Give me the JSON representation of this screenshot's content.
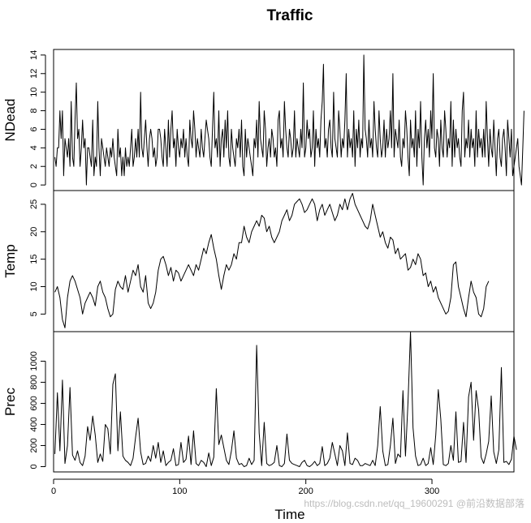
{
  "chart_data": {
    "type": "line",
    "title": "Traffic",
    "xlabel": "Time",
    "xlim": [
      0,
      365
    ],
    "xticks": [
      0,
      100,
      200,
      300
    ],
    "watermark": "https://blog.csdn.net/qq_19600291 @前沿数据部落",
    "panels": [
      {
        "ylabel": "NDead",
        "ylim": [
          -0.6,
          14.6
        ],
        "yticks": [
          0,
          2,
          4,
          6,
          8,
          10,
          12,
          14
        ],
        "start": 1,
        "step": 1,
        "values": [
          3,
          2,
          4,
          4,
          8,
          5,
          8,
          1,
          5,
          4,
          3,
          5,
          2,
          9,
          3,
          2,
          7,
          11,
          5,
          6,
          2,
          4,
          7,
          4,
          5,
          0,
          4,
          4,
          3,
          2,
          7,
          1,
          3,
          2,
          9,
          4,
          1,
          5,
          4,
          3,
          2,
          4,
          3,
          2,
          4,
          3,
          5,
          3,
          2,
          1,
          6,
          3,
          4,
          1,
          3,
          1,
          4,
          2,
          3,
          2,
          4,
          6,
          2,
          3,
          5,
          3,
          6,
          3,
          10,
          4,
          3,
          5,
          7,
          4,
          2,
          5,
          6,
          5,
          3,
          4,
          2,
          3,
          6,
          6,
          5,
          3,
          2,
          6,
          4,
          2,
          7,
          3,
          6,
          8,
          4,
          5,
          2,
          6,
          4,
          3,
          5,
          4,
          6,
          3,
          5,
          3,
          2,
          7,
          5,
          4,
          8,
          6,
          3,
          5,
          4,
          3,
          6,
          4,
          3,
          5,
          7,
          6,
          5,
          3,
          2,
          6,
          10,
          4,
          5,
          3,
          8,
          2,
          5,
          6,
          3,
          7,
          4,
          8,
          3,
          2,
          6,
          4,
          3,
          2,
          5,
          4,
          6,
          3,
          7,
          2,
          1,
          6,
          3,
          5,
          4,
          3,
          2,
          1,
          5,
          4,
          7,
          3,
          9,
          5,
          4,
          3,
          8,
          6,
          2,
          4,
          5,
          3,
          6,
          5,
          3,
          4,
          2,
          7,
          8,
          4,
          5,
          3,
          9,
          6,
          4,
          3,
          6,
          5,
          3,
          4,
          8,
          3,
          5,
          4,
          3,
          6,
          4,
          11,
          3,
          4,
          7,
          5,
          6,
          3,
          4,
          8,
          2,
          6,
          4,
          5,
          3,
          7,
          9,
          13,
          4,
          5,
          3,
          6,
          7,
          4,
          3,
          10,
          5,
          4,
          3,
          8,
          6,
          3,
          5,
          4,
          7,
          12,
          3,
          6,
          4,
          5,
          3,
          8,
          2,
          6,
          4,
          7,
          3,
          5,
          4,
          14,
          6,
          5,
          3,
          7,
          4,
          5,
          3,
          9,
          6,
          4,
          3,
          8,
          5,
          3,
          4,
          7,
          3,
          6,
          4,
          5,
          8,
          4,
          12,
          3,
          6,
          5,
          4,
          7,
          3,
          2,
          5,
          4,
          8,
          6,
          3,
          1,
          7,
          4,
          5,
          3,
          8,
          2,
          6,
          4,
          9,
          3,
          0,
          5,
          7,
          4,
          6,
          3,
          8,
          5,
          12,
          4,
          3,
          6,
          5,
          2,
          7,
          4,
          3,
          8,
          6,
          3,
          5,
          4,
          9,
          2,
          7,
          3,
          6,
          4,
          5,
          3,
          2,
          8,
          10,
          3,
          5,
          4,
          7,
          3,
          6,
          4,
          5,
          2,
          8,
          3,
          6,
          4,
          5,
          3,
          6,
          3,
          9,
          5,
          2,
          6,
          4,
          3,
          7,
          4,
          1,
          5,
          6,
          3,
          2,
          5,
          6,
          4,
          1,
          7,
          5,
          3,
          6,
          1,
          2,
          3,
          4,
          5,
          2,
          1,
          0,
          4,
          8
        ]
      },
      {
        "ylabel": "Temp",
        "ylim": [
          1.8,
          27.5
        ],
        "yticks": [
          5,
          10,
          15,
          20,
          25
        ],
        "start": 1,
        "step": 2,
        "values": [
          9,
          10,
          8,
          4,
          2.5,
          8,
          11,
          12,
          11,
          9.5,
          8,
          5,
          7,
          8,
          9,
          8,
          6.5,
          10,
          11,
          9,
          8,
          6,
          4.5,
          5,
          9.5,
          11,
          10,
          9.5,
          12,
          9,
          11,
          13,
          12,
          14,
          10,
          9,
          12,
          7,
          6,
          7,
          9,
          13,
          15,
          15.5,
          14,
          12,
          13.5,
          11,
          13,
          12.5,
          11,
          12,
          13,
          14,
          13,
          12,
          14,
          13,
          15,
          17,
          16,
          18,
          19.5,
          17,
          15,
          12,
          9.5,
          12,
          14,
          13,
          14,
          16,
          15,
          18,
          18,
          21,
          19,
          18,
          20,
          21,
          22,
          21,
          23,
          22.5,
          20,
          21,
          19,
          18,
          19,
          20,
          22,
          23,
          24,
          22,
          23,
          25,
          25.5,
          26,
          25,
          23.5,
          24,
          25,
          26,
          25,
          22,
          24,
          25,
          23,
          24,
          25,
          23.5,
          22,
          23,
          25,
          24,
          26,
          24,
          26,
          27,
          25,
          24,
          23,
          22,
          21,
          20.5,
          22,
          25,
          23,
          21,
          19,
          20,
          18,
          17,
          19,
          18.5,
          16,
          17,
          15,
          15.5,
          16,
          13,
          13.5,
          15,
          14,
          16,
          15,
          12,
          12.5,
          10,
          11,
          9,
          10,
          8,
          7,
          6,
          5,
          5.5,
          8,
          14,
          14.5,
          10,
          8,
          6,
          4.5,
          8,
          11,
          9,
          8,
          5,
          4.5,
          6,
          10,
          11
        ]
      },
      {
        "ylabel": "Prec",
        "ylim": [
          -50,
          1280
        ],
        "yticks": [
          0,
          200,
          400,
          600,
          800,
          1000
        ],
        "start": 1,
        "step": 2,
        "values": [
          120,
          700,
          150,
          820,
          30,
          200,
          750,
          110,
          60,
          150,
          40,
          10,
          100,
          380,
          250,
          480,
          300,
          40,
          120,
          50,
          400,
          360,
          120,
          780,
          880,
          150,
          520,
          100,
          60,
          40,
          10,
          80,
          280,
          460,
          140,
          20,
          30,
          100,
          50,
          200,
          80,
          230,
          40,
          150,
          10,
          40,
          60,
          170,
          10,
          20,
          230,
          40,
          70,
          290,
          20,
          340,
          30,
          10,
          60,
          40,
          0,
          130,
          10,
          90,
          740,
          210,
          300,
          180,
          60,
          20,
          150,
          340,
          80,
          20,
          30,
          0,
          10,
          80,
          20,
          60,
          1150,
          320,
          10,
          420,
          30,
          10,
          20,
          40,
          200,
          10,
          0,
          30,
          310,
          60,
          30,
          20,
          10,
          0,
          40,
          60,
          10,
          0,
          20,
          50,
          10,
          30,
          190,
          10,
          30,
          80,
          230,
          120,
          10,
          200,
          150,
          10,
          320,
          30,
          20,
          80,
          60,
          10,
          10,
          30,
          20,
          10,
          60,
          10,
          200,
          570,
          150,
          10,
          20,
          200,
          460,
          30,
          120,
          90,
          720,
          100,
          610,
          1280,
          370,
          100,
          10,
          20,
          80,
          10,
          30,
          180,
          20,
          300,
          730,
          450,
          20,
          10,
          30,
          200,
          60,
          520,
          40,
          50,
          420,
          40,
          660,
          800,
          250,
          720,
          540,
          90,
          30,
          120,
          240,
          670,
          140,
          30,
          160,
          940,
          40,
          50,
          20,
          70,
          290,
          160
        ]
      }
    ]
  }
}
